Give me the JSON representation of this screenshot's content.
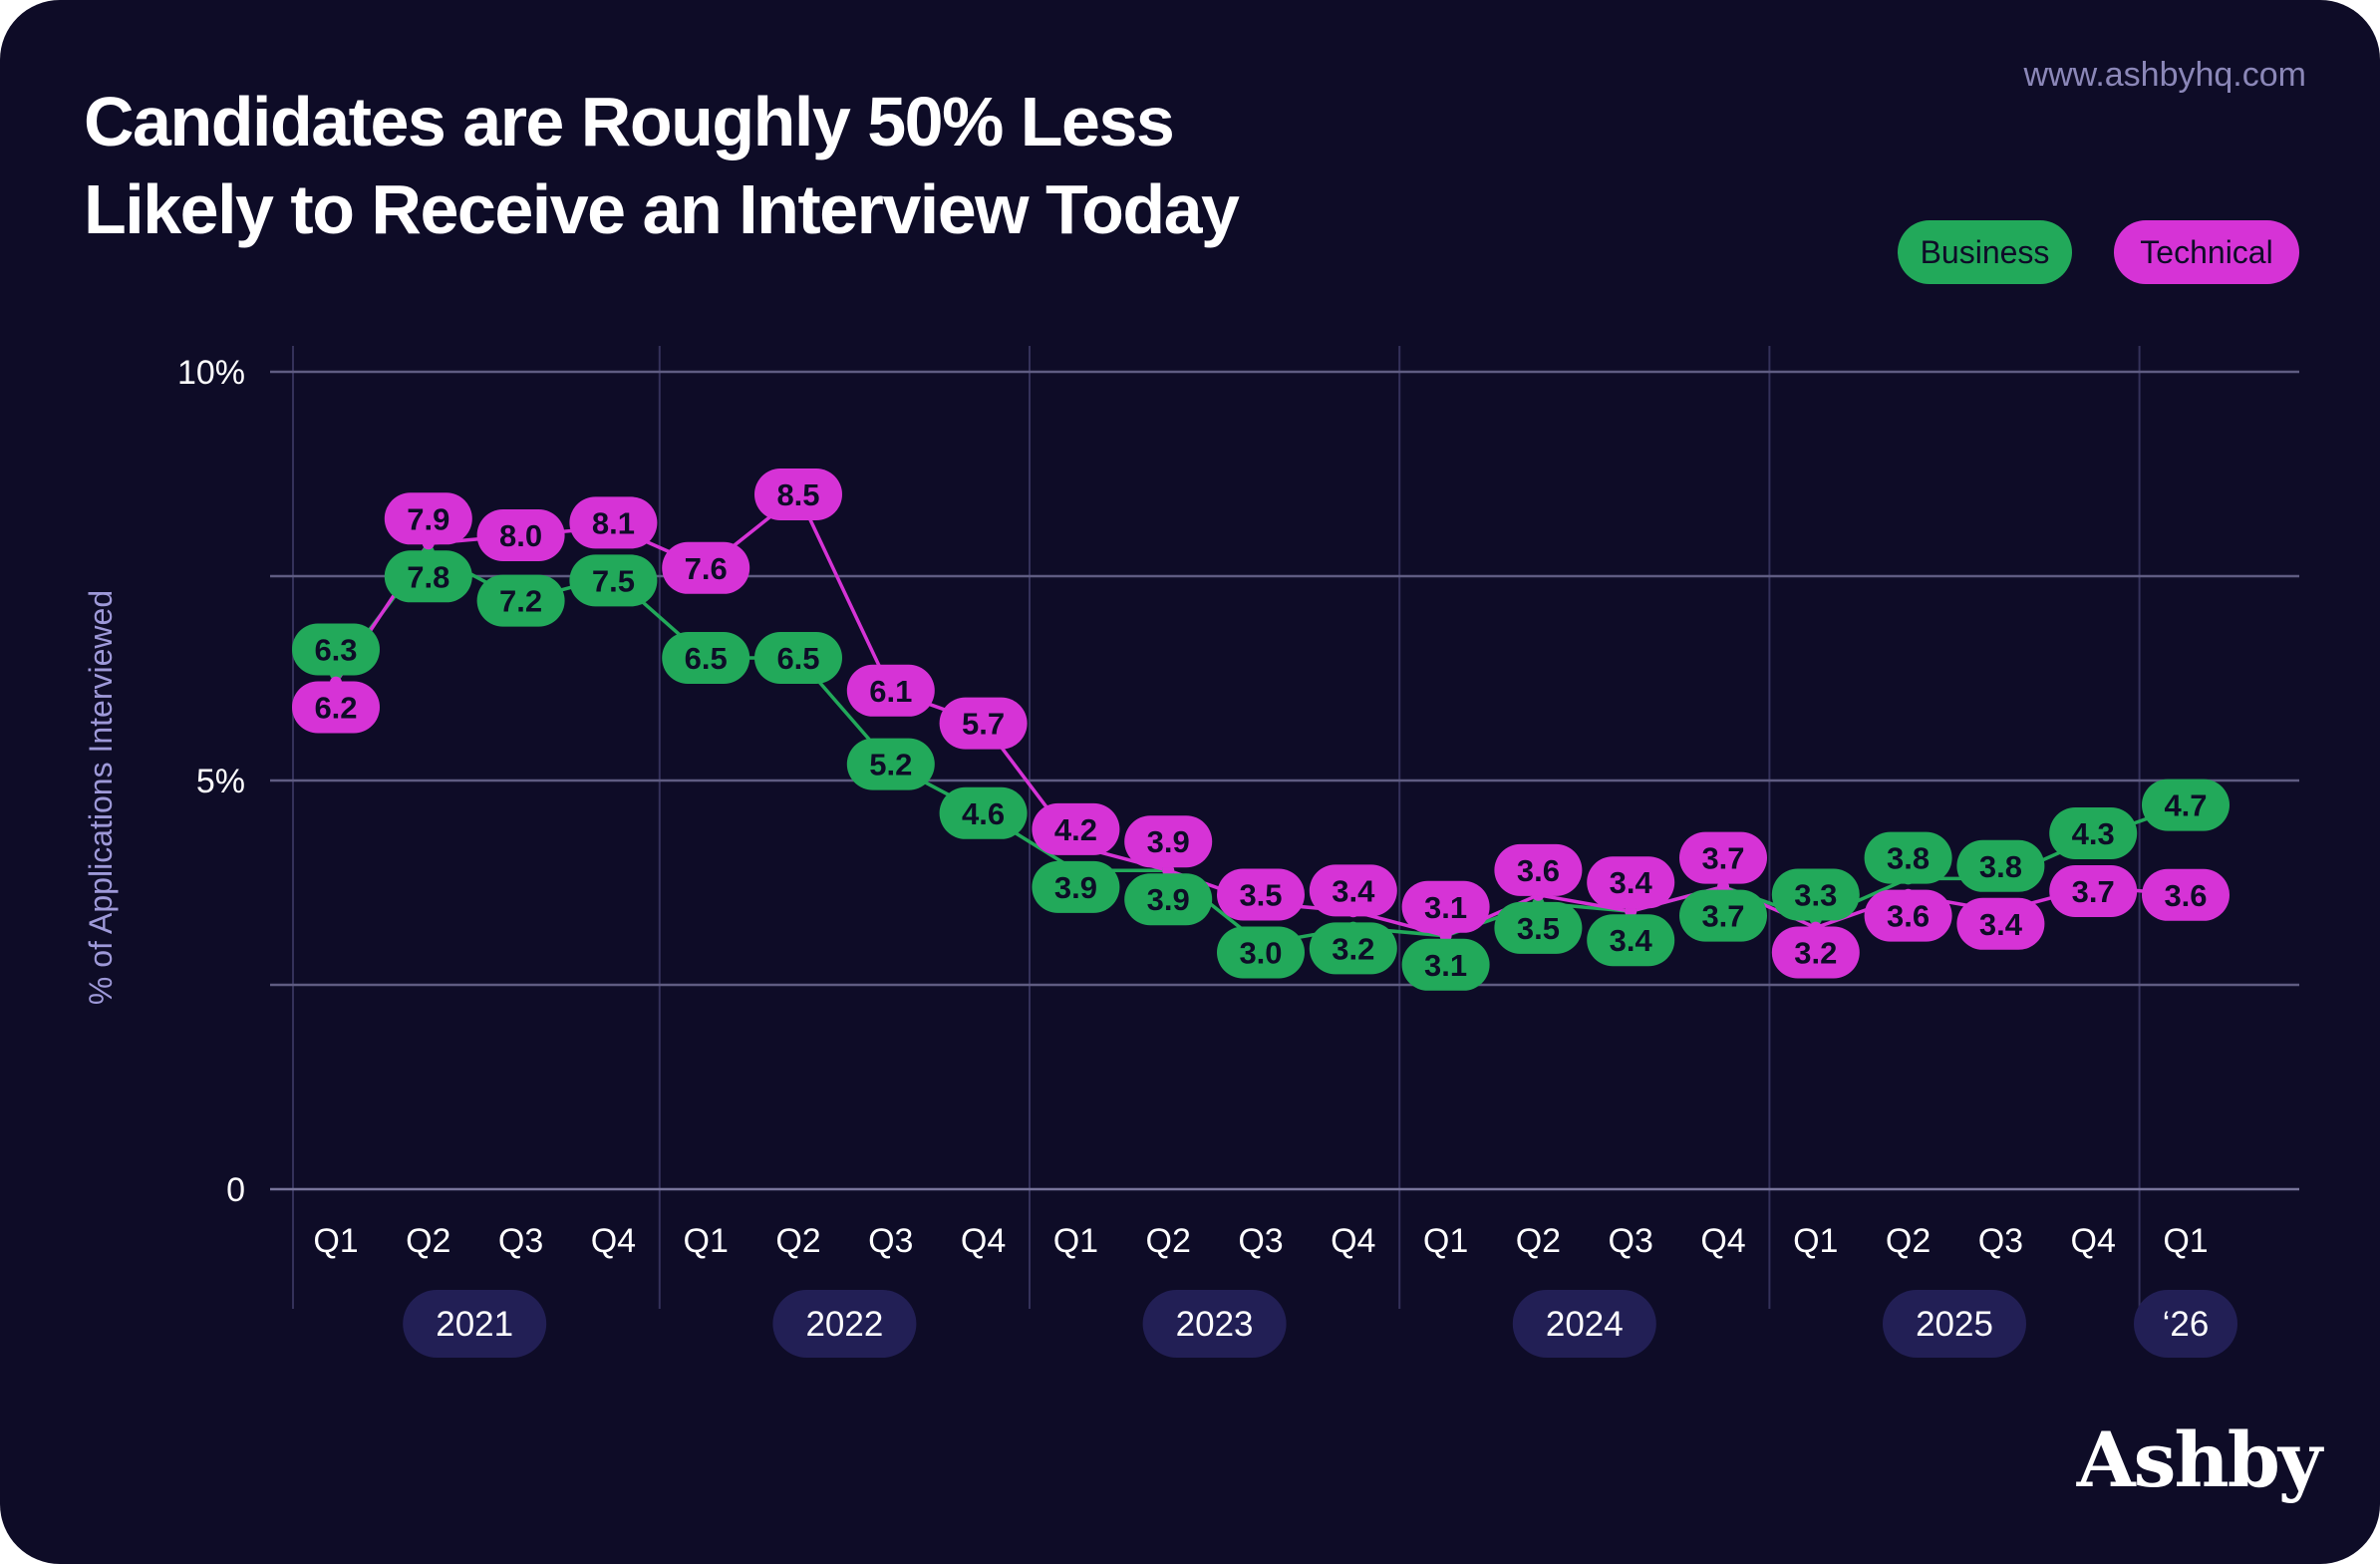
{
  "header": {
    "title_line1": "Candidates are Roughly 50% Less",
    "title_line2": "Likely to Receive an Interview Today",
    "url": "www.ashbyhq.com",
    "logo": "Ashby"
  },
  "colors": {
    "business": "#22a95a",
    "technical": "#d633d6",
    "background": "#0e0c27",
    "year_pill": "#221f55"
  },
  "chart_data": {
    "type": "line",
    "title": "Candidates are Roughly 50% Less Likely to Receive an Interview Today",
    "ylabel": "% of Applications Interviewed",
    "xlabel": "",
    "ylim": [
      0,
      10
    ],
    "yticks": [
      {
        "value": 10,
        "label": "10%"
      },
      {
        "value": 7.5,
        "label": ""
      },
      {
        "value": 5,
        "label": "5%"
      },
      {
        "value": 2.5,
        "label": ""
      },
      {
        "value": 0,
        "label": "0"
      }
    ],
    "grid": true,
    "legend": "top-right",
    "categories": [
      "Q1",
      "Q2",
      "Q3",
      "Q4",
      "Q1",
      "Q2",
      "Q3",
      "Q4",
      "Q1",
      "Q2",
      "Q3",
      "Q4",
      "Q1",
      "Q2",
      "Q3",
      "Q4",
      "Q1",
      "Q2",
      "Q3",
      "Q4",
      "Q1"
    ],
    "years": [
      {
        "label": "2021",
        "start": 0,
        "end": 3
      },
      {
        "label": "2022",
        "start": 4,
        "end": 7
      },
      {
        "label": "2023",
        "start": 8,
        "end": 11
      },
      {
        "label": "2024",
        "start": 12,
        "end": 15
      },
      {
        "label": "2025",
        "start": 16,
        "end": 19
      },
      {
        "label": "‘26",
        "start": 20,
        "end": 20
      }
    ],
    "series": [
      {
        "name": "Business",
        "values": [
          6.3,
          7.8,
          7.2,
          7.5,
          6.5,
          6.5,
          5.2,
          4.6,
          3.9,
          3.9,
          3.0,
          3.2,
          3.1,
          3.5,
          3.4,
          3.7,
          3.3,
          3.8,
          3.8,
          4.3,
          4.7
        ]
      },
      {
        "name": "Technical",
        "values": [
          6.2,
          7.9,
          8.0,
          8.1,
          7.6,
          8.5,
          6.1,
          5.7,
          4.2,
          3.9,
          3.5,
          3.4,
          3.1,
          3.6,
          3.4,
          3.7,
          3.2,
          3.6,
          3.4,
          3.7,
          3.6
        ]
      }
    ]
  }
}
